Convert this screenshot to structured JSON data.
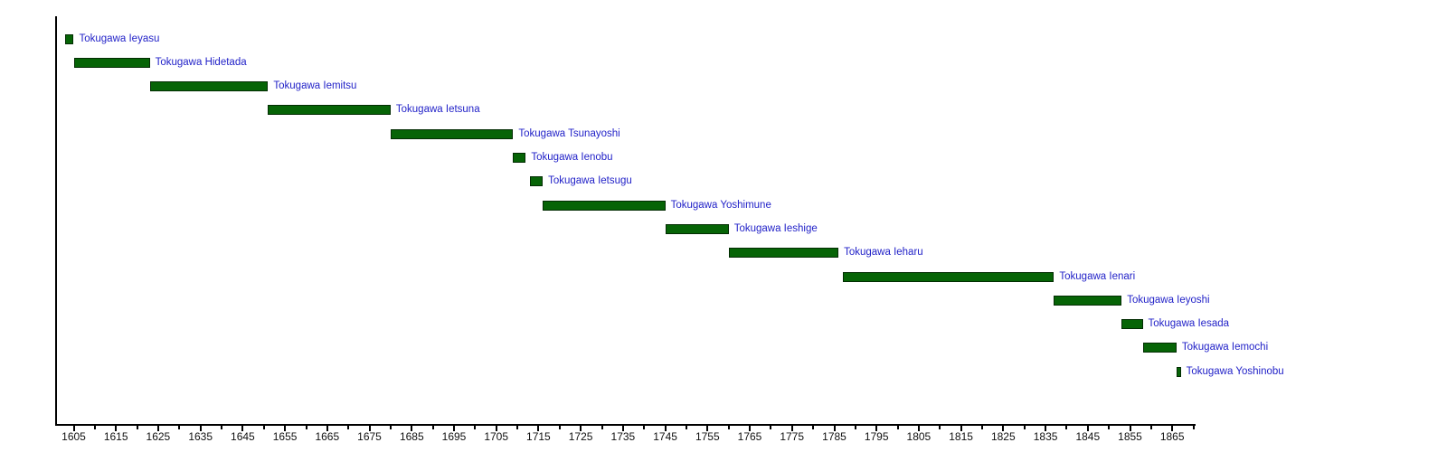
{
  "chart_data": {
    "type": "bar",
    "variant": "horizontal-timeline-gantt",
    "title": "",
    "ylabel": "",
    "xlabel": "",
    "grid": false,
    "legend": false,
    "series": [
      {
        "label": "Tokugawa Ieyasu",
        "start": 1603,
        "end": 1605
      },
      {
        "label": "Tokugawa Hidetada",
        "start": 1605,
        "end": 1623
      },
      {
        "label": "Tokugawa Iemitsu",
        "start": 1623,
        "end": 1651
      },
      {
        "label": "Tokugawa Ietsuna",
        "start": 1651,
        "end": 1680
      },
      {
        "label": "Tokugawa Tsunayoshi",
        "start": 1680,
        "end": 1709
      },
      {
        "label": "Tokugawa Ienobu",
        "start": 1709,
        "end": 1712
      },
      {
        "label": "Tokugawa Ietsugu",
        "start": 1713,
        "end": 1716
      },
      {
        "label": "Tokugawa Yoshimune",
        "start": 1716,
        "end": 1745
      },
      {
        "label": "Tokugawa Ieshige",
        "start": 1745,
        "end": 1760
      },
      {
        "label": "Tokugawa Ieharu",
        "start": 1760,
        "end": 1786
      },
      {
        "label": "Tokugawa Ienari",
        "start": 1787,
        "end": 1837
      },
      {
        "label": "Tokugawa Ieyoshi",
        "start": 1837,
        "end": 1853
      },
      {
        "label": "Tokugawa Iesada",
        "start": 1853,
        "end": 1858
      },
      {
        "label": "Tokugawa Iemochi",
        "start": 1858,
        "end": 1866
      },
      {
        "label": "Tokugawa Yoshinobu",
        "start": 1866,
        "end": 1867
      }
    ],
    "xlim": [
      1601,
      1870
    ],
    "x_ticks": {
      "minor_step": 5,
      "major_step": 10,
      "first_tick": 1605,
      "last_tick": 1870,
      "major_labels": [
        "1605",
        "1615",
        "1625",
        "1635",
        "1645",
        "1655",
        "1665",
        "1675",
        "1685",
        "1695",
        "1705",
        "1715",
        "1725",
        "1735",
        "1745",
        "1755",
        "1765",
        "1775",
        "1785",
        "1795",
        "1805",
        "1815",
        "1825",
        "1835",
        "1845",
        "1855",
        "1865"
      ]
    },
    "colors": {
      "bar_fill": "#066406",
      "bar_border": "#022c02",
      "bar_label": "#2222c8",
      "axis": "#000000",
      "tick_label": "#111111",
      "background": "#ffffff"
    }
  }
}
